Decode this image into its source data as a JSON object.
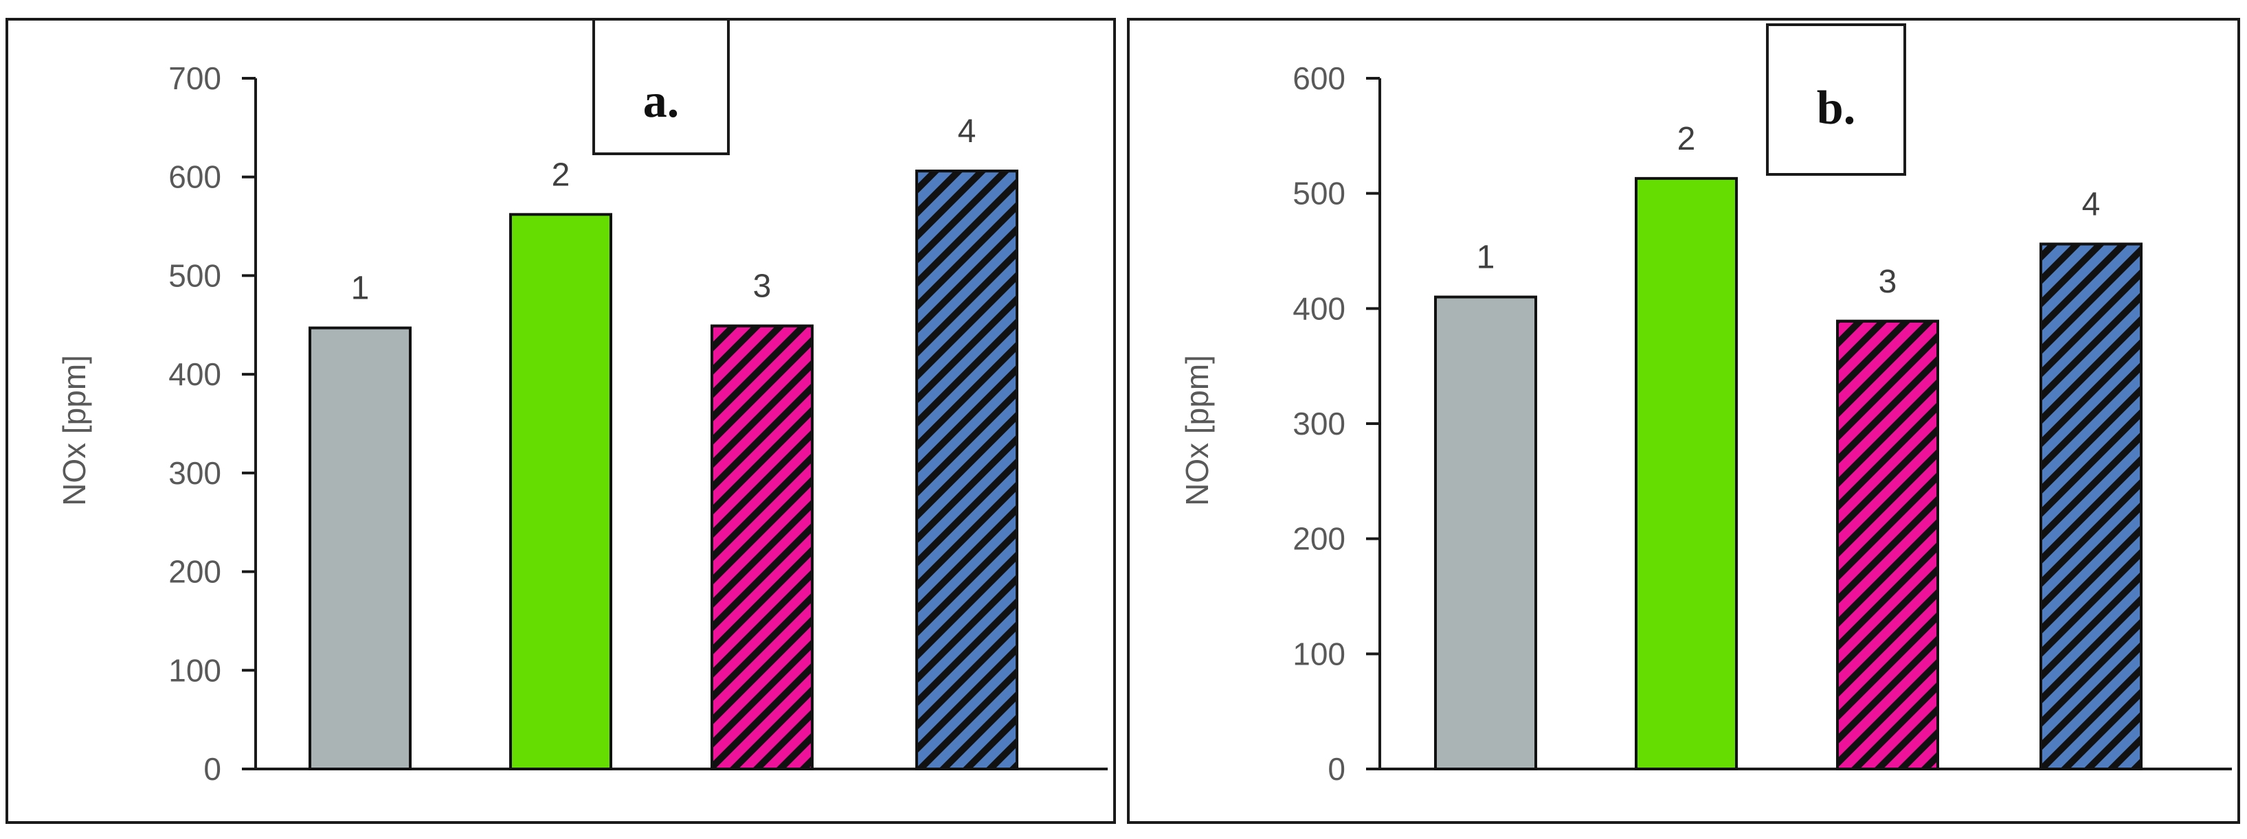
{
  "chart_data": [
    {
      "type": "bar",
      "panel_label": "a.",
      "categories": [
        "1",
        "2",
        "3",
        "4"
      ],
      "values": [
        447,
        562,
        449,
        606
      ],
      "data_labels": [
        "1",
        "2",
        "3",
        "4"
      ],
      "ylabel": "NOx [ppm]",
      "xlabel": "",
      "ylim": [
        0,
        700
      ],
      "yticks": [
        0,
        100,
        200,
        300,
        400,
        500,
        600,
        700
      ],
      "bar_colors": [
        "#aab4b4",
        "#66dd00",
        "#ee1199",
        "#4f7dc0"
      ],
      "bar_hatched": [
        false,
        false,
        true,
        true
      ],
      "grid": false
    },
    {
      "type": "bar",
      "panel_label": "b.",
      "categories": [
        "1",
        "2",
        "3",
        "4"
      ],
      "values": [
        410,
        513,
        389,
        456
      ],
      "data_labels": [
        "1",
        "2",
        "3",
        "4"
      ],
      "ylabel": "NOx [ppm]",
      "xlabel": "",
      "ylim": [
        0,
        600
      ],
      "yticks": [
        0,
        100,
        200,
        300,
        400,
        500,
        600
      ],
      "bar_colors": [
        "#aab4b4",
        "#66dd00",
        "#ee1199",
        "#4f7dc0"
      ],
      "bar_hatched": [
        false,
        false,
        true,
        true
      ],
      "grid": false
    }
  ]
}
